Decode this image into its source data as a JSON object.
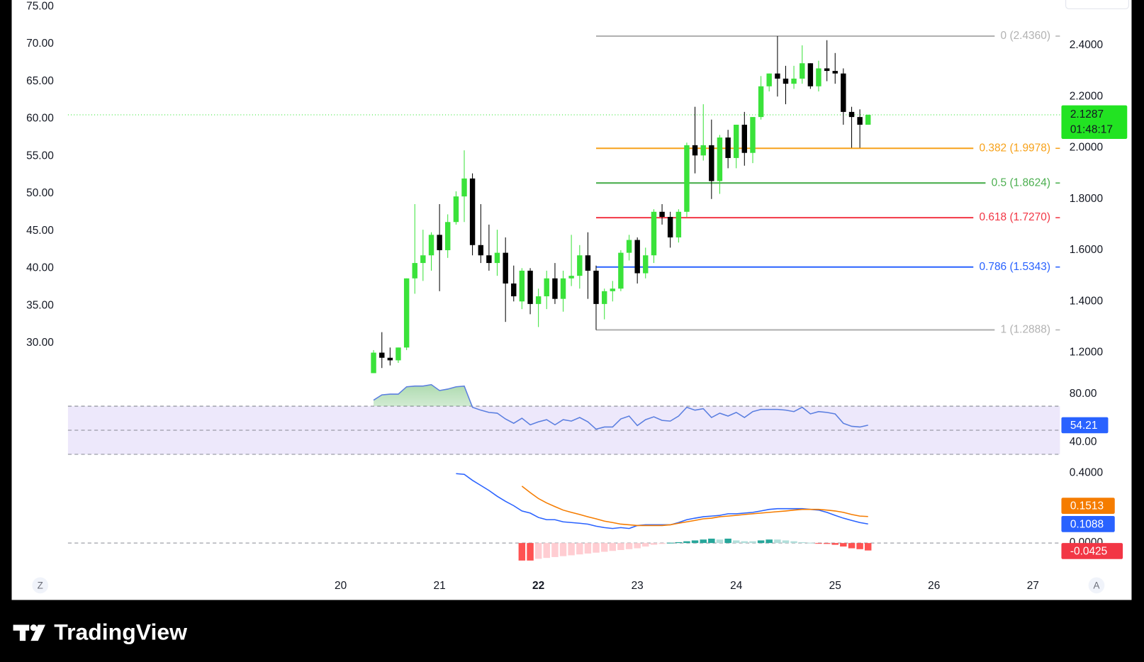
{
  "chart_data": {
    "type": "candlestick",
    "x": [
      20.333,
      20.417,
      20.5,
      20.583,
      20.667,
      20.75,
      20.833,
      20.917,
      21,
      21.083,
      21.167,
      21.25,
      21.333,
      21.417,
      21.5,
      21.583,
      21.667,
      21.75,
      21.833,
      21.917,
      22,
      22.083,
      22.167,
      22.25,
      22.333,
      22.417,
      22.5,
      22.583,
      22.667,
      22.75,
      22.833,
      22.917,
      23,
      23.083,
      23.167,
      23.25,
      23.333,
      23.417,
      23.5,
      23.583,
      23.667,
      23.75,
      23.833,
      23.917,
      24,
      24.083,
      24.167,
      24.25,
      24.333,
      24.417,
      24.5,
      24.583,
      24.667,
      24.75,
      24.833,
      24.917,
      25,
      25.083,
      25.167,
      25.25,
      25.333
    ],
    "open": [
      1.12,
      1.2,
      1.18,
      1.17,
      1.22,
      1.49,
      1.55,
      1.58,
      1.66,
      1.6,
      1.71,
      1.81,
      1.88,
      1.62,
      1.58,
      1.55,
      1.59,
      1.47,
      1.4,
      1.52,
      1.39,
      1.42,
      1.49,
      1.41,
      1.49,
      1.5,
      1.58,
      1.52,
      1.39,
      1.44,
      1.45,
      1.59,
      1.64,
      1.51,
      1.58,
      1.75,
      1.73,
      1.65,
      1.75,
      2.01,
      1.97,
      2.01,
      1.87,
      2.04,
      1.96,
      2.09,
      1.98,
      2.12,
      2.24,
      2.29,
      2.27,
      2.25,
      2.27,
      2.33,
      2.24,
      2.31,
      2.3,
      2.29,
      2.14,
      2.12,
      2.09
    ],
    "high": [
      1.21,
      1.28,
      1.22,
      1.22,
      1.49,
      1.78,
      1.68,
      1.67,
      1.78,
      1.74,
      1.83,
      1.99,
      1.9,
      1.78,
      1.7,
      1.68,
      1.65,
      1.54,
      1.53,
      1.53,
      1.45,
      1.52,
      1.55,
      1.52,
      1.66,
      1.62,
      1.67,
      1.54,
      1.45,
      1.48,
      1.6,
      1.66,
      1.65,
      1.61,
      1.76,
      1.78,
      1.75,
      1.76,
      2.02,
      2.16,
      2.17,
      2.11,
      2.05,
      2.07,
      2.09,
      2.14,
      2.12,
      2.28,
      2.29,
      2.436,
      2.32,
      2.32,
      2.4,
      2.33,
      2.34,
      2.42,
      2.37,
      2.31,
      2.16,
      2.15,
      2.13
    ],
    "low": [
      1.12,
      1.14,
      1.15,
      1.16,
      1.21,
      1.43,
      1.48,
      1.52,
      1.44,
      1.57,
      1.7,
      1.71,
      1.58,
      1.55,
      1.52,
      1.5,
      1.32,
      1.4,
      1.37,
      1.35,
      1.3,
      1.37,
      1.39,
      1.36,
      1.46,
      1.45,
      1.41,
      1.2888,
      1.33,
      1.4,
      1.44,
      1.56,
      1.47,
      1.49,
      1.55,
      1.7,
      1.61,
      1.63,
      1.73,
      1.9,
      1.95,
      1.8,
      1.82,
      1.92,
      1.92,
      1.93,
      1.94,
      2.11,
      2.22,
      2.2,
      2.17,
      2.23,
      2.25,
      2.23,
      2.22,
      2.26,
      2.25,
      2.09,
      2.0,
      2.0,
      2.09
    ],
    "close": [
      1.2,
      1.18,
      1.17,
      1.22,
      1.49,
      1.55,
      1.58,
      1.66,
      1.6,
      1.71,
      1.81,
      1.88,
      1.62,
      1.58,
      1.55,
      1.59,
      1.47,
      1.42,
      1.52,
      1.39,
      1.42,
      1.49,
      1.41,
      1.49,
      1.5,
      1.58,
      1.52,
      1.39,
      1.44,
      1.45,
      1.59,
      1.64,
      1.51,
      1.58,
      1.75,
      1.73,
      1.65,
      1.75,
      2.01,
      1.97,
      2.01,
      1.87,
      2.04,
      1.96,
      2.09,
      1.98,
      2.12,
      2.24,
      2.29,
      2.27,
      2.25,
      2.27,
      2.33,
      2.24,
      2.31,
      2.3,
      2.29,
      2.14,
      2.12,
      2.09,
      2.1287
    ],
    "up_color": "#3ae23a",
    "down_color": "#000000",
    "xlim": [
      16.674,
      27.273
    ],
    "xticks": [
      20,
      21,
      22,
      23,
      24,
      25,
      26,
      27
    ],
    "ylim": [
      1.095,
      2.577
    ],
    "yticks": [
      {
        "value": 1.2,
        "label": "1.2000"
      },
      {
        "value": 1.4,
        "label": "1.4000"
      },
      {
        "value": 1.6,
        "label": "1.6000"
      },
      {
        "value": 1.8,
        "label": "1.8000"
      },
      {
        "value": 2.0,
        "label": "2.0000"
      },
      {
        "value": 2.2,
        "label": "2.2000"
      },
      {
        "value": 2.4,
        "label": "2.4000"
      }
    ],
    "y2lim": [
      25.12,
      75.88
    ],
    "y2ticks": [
      {
        "value": 30,
        "label": "30.00"
      },
      {
        "value": 35,
        "label": "35.00"
      },
      {
        "value": 40,
        "label": "40.00"
      },
      {
        "value": 45,
        "label": "45.00"
      },
      {
        "value": 50,
        "label": "50.00"
      },
      {
        "value": 55,
        "label": "55.00"
      },
      {
        "value": 60,
        "label": "60.00"
      },
      {
        "value": 65,
        "label": "65.00"
      },
      {
        "value": 70,
        "label": "70.00"
      },
      {
        "value": 75,
        "label": "75.00"
      }
    ],
    "countdown": "01:48:17",
    "price_color": "#22e322",
    "fib_levels": [
      {
        "label": "0 (2.4360)",
        "value": 2.436,
        "color": "#b2b2b2"
      },
      {
        "label": "0.382 (1.9978)",
        "value": 1.9978,
        "color": "#f7a21b"
      },
      {
        "label": "0.5 (1.8624)",
        "value": 1.8624,
        "color": "#4caf50"
      },
      {
        "label": "0.618 (1.7270)",
        "value": 1.727,
        "color": "#f23645"
      },
      {
        "label": "0.786 (1.5343)",
        "value": 1.5343,
        "color": "#2962ff"
      },
      {
        "label": "1 (1.2888)",
        "value": 1.2888,
        "color": "#b2b2b2"
      }
    ],
    "rsi": {
      "color": "#5b7fe0",
      "band_color": "#ede8fb",
      "fill_color": "#4caf50",
      "ylim": [
        25.45,
        92.12
      ],
      "yticks": [
        {
          "value": 80,
          "label": "80.00"
        },
        {
          "value": 40,
          "label": "40.00"
        }
      ],
      "levels": [
        70,
        50,
        30
      ],
      "values": [
        75,
        79.4,
        80,
        80,
        86.1,
        86.7,
        86.7,
        87.9,
        83,
        84.2,
        86.1,
        86.7,
        69.1,
        66.7,
        64.8,
        64.2,
        59.4,
        55.8,
        60,
        54.5,
        57,
        58.8,
        54.5,
        58.8,
        57.6,
        60.6,
        57,
        50.9,
        52.7,
        52.7,
        59.4,
        61.8,
        53.9,
        58.8,
        61.2,
        58.2,
        57.6,
        61.8,
        69.1,
        66.7,
        67.9,
        60.6,
        64.2,
        61.8,
        64.8,
        60.6,
        65.5,
        67.3,
        67.3,
        67.3,
        66.7,
        65.5,
        69.1,
        63.6,
        65.5,
        64.8,
        63.6,
        55.8,
        53.3,
        52.7,
        54.21
      ]
    },
    "macd": {
      "ylim": [
        -0.15,
        0.4667
      ],
      "yticks": [
        {
          "value": 0.4,
          "label": "0.4000"
        },
        {
          "value": 0,
          "label": "0.0000"
        }
      ],
      "series": [
        {
          "color": "#2962ff",
          "values": [
            null,
            null,
            null,
            null,
            null,
            null,
            null,
            null,
            null,
            null,
            0.396,
            0.392,
            0.358,
            0.329,
            0.3,
            0.267,
            0.238,
            0.213,
            0.183,
            0.171,
            0.146,
            0.133,
            0.133,
            0.121,
            0.117,
            0.113,
            0.108,
            0.096,
            0.088,
            0.083,
            0.088,
            0.083,
            0.1,
            0.104,
            0.104,
            0.104,
            0.104,
            0.117,
            0.133,
            0.142,
            0.15,
            0.154,
            0.158,
            0.167,
            0.167,
            0.171,
            0.175,
            0.183,
            0.192,
            0.196,
            0.196,
            0.196,
            0.196,
            0.192,
            0.188,
            0.175,
            0.158,
            0.142,
            0.129,
            0.117,
            0.1088
          ]
        },
        {
          "color": "#f57c00",
          "values": [
            null,
            null,
            null,
            null,
            null,
            null,
            null,
            null,
            null,
            null,
            null,
            null,
            null,
            null,
            null,
            null,
            null,
            null,
            0.325,
            0.288,
            0.254,
            0.229,
            0.208,
            0.188,
            0.175,
            0.163,
            0.15,
            0.138,
            0.125,
            0.117,
            0.108,
            0.104,
            0.1,
            0.1,
            0.1,
            0.1,
            0.104,
            0.113,
            0.121,
            0.129,
            0.138,
            0.142,
            0.15,
            0.154,
            0.158,
            0.163,
            0.167,
            0.171,
            0.175,
            0.179,
            0.183,
            0.188,
            0.192,
            0.192,
            0.192,
            0.188,
            0.183,
            0.175,
            0.163,
            0.154,
            0.1513
          ]
        }
      ],
      "histogram": [
        null,
        null,
        null,
        null,
        null,
        null,
        null,
        null,
        null,
        null,
        null,
        null,
        null,
        null,
        null,
        null,
        null,
        null,
        -0.1,
        -0.1,
        -0.09,
        -0.085,
        -0.08,
        -0.075,
        -0.07,
        -0.065,
        -0.06,
        -0.055,
        -0.05,
        -0.045,
        -0.04,
        -0.035,
        -0.03,
        -0.02,
        -0.01,
        -0.005,
        0.002,
        0.005,
        0.01,
        0.015,
        0.02,
        0.025,
        0.02,
        0.025,
        0.015,
        0.01,
        0.01,
        0.015,
        0.02,
        0.02,
        0.015,
        0.01,
        0.005,
        0.002,
        -0.002,
        -0.005,
        -0.01,
        -0.02,
        -0.03,
        -0.035,
        -0.0425
      ],
      "histogram_colors": {
        "pos_up": "#26a69a",
        "pos_down": "#b2dfdb",
        "neg_down": "#ff5252",
        "neg_up": "#ffcdd2"
      },
      "value_box_color": "#f23645"
    }
  },
  "ui": {
    "left_button": "Z",
    "right_button": "A"
  },
  "footer": {
    "brand": "TradingView"
  }
}
